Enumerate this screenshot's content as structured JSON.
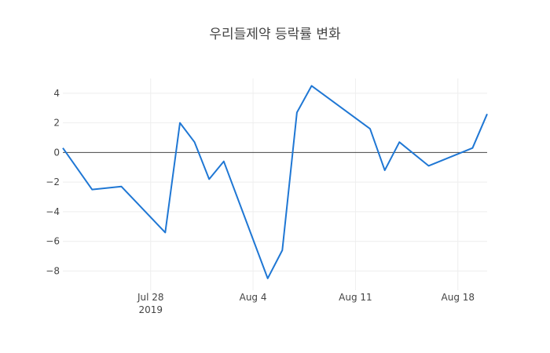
{
  "chart_data": {
    "type": "line",
    "title": "우리들제약 등락률 변화",
    "xlabel": "",
    "ylabel": "",
    "x": [
      "2019-07-22",
      "2019-07-24",
      "2019-07-26",
      "2019-07-29",
      "2019-07-30",
      "2019-07-31",
      "2019-08-01",
      "2019-08-02",
      "2019-08-05",
      "2019-08-06",
      "2019-08-07",
      "2019-08-08",
      "2019-08-12",
      "2019-08-13",
      "2019-08-14",
      "2019-08-16",
      "2019-08-19",
      "2019-08-20"
    ],
    "series": [
      {
        "values": [
          0.3,
          -2.5,
          -2.3,
          -5.4,
          2.0,
          0.7,
          -1.8,
          -0.6,
          -8.5,
          -6.6,
          2.7,
          4.5,
          1.6,
          -1.2,
          0.7,
          -0.9,
          0.3,
          2.6
        ],
        "color": "#1f77d4"
      }
    ],
    "x_range": [
      "2019-07-22",
      "2019-08-20"
    ],
    "ylim": [
      -9.3,
      5.0
    ],
    "y_ticks": [
      4,
      2,
      0,
      -2,
      -4,
      -6,
      -8
    ],
    "y_tick_labels": [
      "4",
      "2",
      "0",
      "−2",
      "−4",
      "−6",
      "−8"
    ],
    "x_ticks": [
      {
        "date": "2019-07-28",
        "label": "Jul 28",
        "sublabel": "2019"
      },
      {
        "date": "2019-08-04",
        "label": "Aug 4",
        "sublabel": ""
      },
      {
        "date": "2019-08-11",
        "label": "Aug 11",
        "sublabel": ""
      },
      {
        "date": "2019-08-18",
        "label": "Aug 18",
        "sublabel": ""
      }
    ],
    "grid": true,
    "zero_line": true
  }
}
